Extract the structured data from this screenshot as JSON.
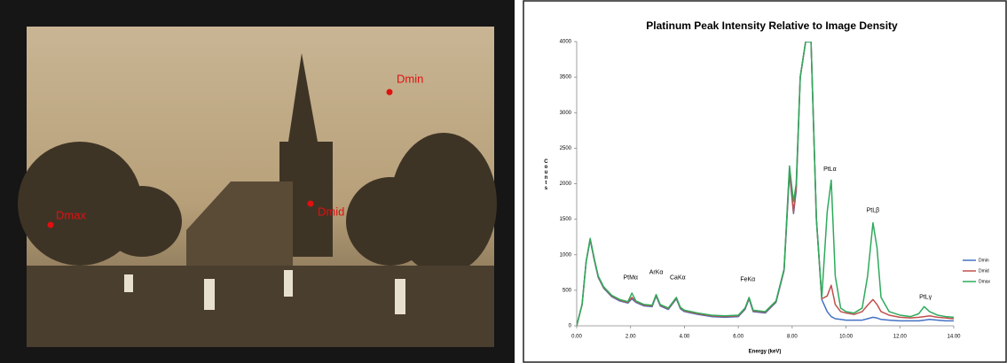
{
  "photo": {
    "labels": [
      "Dmin",
      "Dmid",
      "Dmax"
    ]
  },
  "chart_data": {
    "type": "line",
    "title": "Platinum Peak Intensity Relative to Image Density",
    "x_label": "Energy (keV)",
    "y_label": "Counts",
    "x": [
      0,
      0.2,
      0.35,
      0.5,
      0.65,
      0.8,
      1.0,
      1.3,
      1.6,
      1.9,
      2.05,
      2.2,
      2.5,
      2.8,
      2.95,
      3.1,
      3.4,
      3.7,
      3.85,
      4.0,
      4.5,
      5.0,
      5.5,
      6.0,
      6.25,
      6.4,
      6.55,
      7.0,
      7.4,
      7.7,
      7.9,
      8.05,
      8.15,
      8.3,
      8.5,
      8.7,
      8.9,
      9.1,
      9.3,
      9.45,
      9.6,
      9.8,
      10.0,
      10.3,
      10.6,
      10.8,
      11.0,
      11.15,
      11.3,
      11.6,
      12.0,
      12.4,
      12.7,
      12.9,
      13.1,
      13.4,
      13.7,
      14.0
    ],
    "series": [
      {
        "name": "Dmin",
        "color": "#4472c4",
        "values": [
          0,
          300,
          900,
          1210,
          930,
          680,
          530,
          410,
          350,
          320,
          380,
          330,
          280,
          270,
          420,
          280,
          230,
          380,
          240,
          200,
          160,
          130,
          120,
          130,
          230,
          380,
          200,
          180,
          330,
          780,
          2150,
          1580,
          1900,
          3500,
          4000,
          4000,
          1500,
          370,
          200,
          130,
          100,
          90,
          80,
          80,
          80,
          100,
          120,
          110,
          90,
          80,
          70,
          70,
          70,
          80,
          90,
          80,
          70,
          70
        ]
      },
      {
        "name": "Dmid",
        "color": "#c0504d",
        "values": [
          0,
          300,
          900,
          1220,
          940,
          690,
          540,
          420,
          360,
          330,
          400,
          340,
          290,
          280,
          430,
          290,
          240,
          390,
          250,
          210,
          170,
          140,
          130,
          140,
          240,
          390,
          210,
          190,
          340,
          790,
          2200,
          1600,
          1950,
          3500,
          4000,
          4000,
          1500,
          380,
          420,
          570,
          300,
          200,
          180,
          160,
          200,
          290,
          370,
          300,
          200,
          150,
          120,
          110,
          120,
          130,
          140,
          120,
          110,
          100
        ]
      },
      {
        "name": "Dmax",
        "color": "#2eaa5c",
        "values": [
          0,
          300,
          900,
          1230,
          950,
          700,
          550,
          430,
          370,
          340,
          460,
          350,
          300,
          290,
          440,
          300,
          250,
          400,
          260,
          220,
          180,
          150,
          140,
          150,
          250,
          400,
          220,
          200,
          350,
          800,
          2250,
          1750,
          2000,
          3500,
          4000,
          4000,
          1500,
          400,
          1600,
          2050,
          700,
          250,
          200,
          180,
          250,
          700,
          1450,
          1100,
          400,
          200,
          150,
          130,
          170,
          270,
          200,
          150,
          130,
          120
        ]
      }
    ],
    "annotations": [
      {
        "text": "PtMα",
        "x": 2.0,
        "y": 600
      },
      {
        "text": "ArKα",
        "x": 2.95,
        "y": 680
      },
      {
        "text": "CaKα",
        "x": 3.75,
        "y": 600
      },
      {
        "text": "FeKα",
        "x": 6.35,
        "y": 580
      },
      {
        "text": "PtLα",
        "x": 9.4,
        "y": 2130
      },
      {
        "text": "PtLβ",
        "x": 11.0,
        "y": 1550
      },
      {
        "text": "PtLγ",
        "x": 12.95,
        "y": 330
      }
    ],
    "xlim": [
      0,
      14
    ],
    "ylim": [
      0,
      4000
    ],
    "xticks": [
      {
        "value": 0,
        "label": "0.00"
      },
      {
        "value": 2,
        "label": "2.00"
      },
      {
        "value": 4,
        "label": "4.00"
      },
      {
        "value": 6,
        "label": "6.00"
      },
      {
        "value": 8,
        "label": "8.00"
      },
      {
        "value": 10,
        "label": "10.00"
      },
      {
        "value": 12,
        "label": "12.00"
      },
      {
        "value": 14,
        "label": "14.00"
      }
    ],
    "yticks": [
      0,
      500,
      1000,
      1500,
      2000,
      2500,
      3000,
      3500,
      4000
    ],
    "legend": "right"
  }
}
